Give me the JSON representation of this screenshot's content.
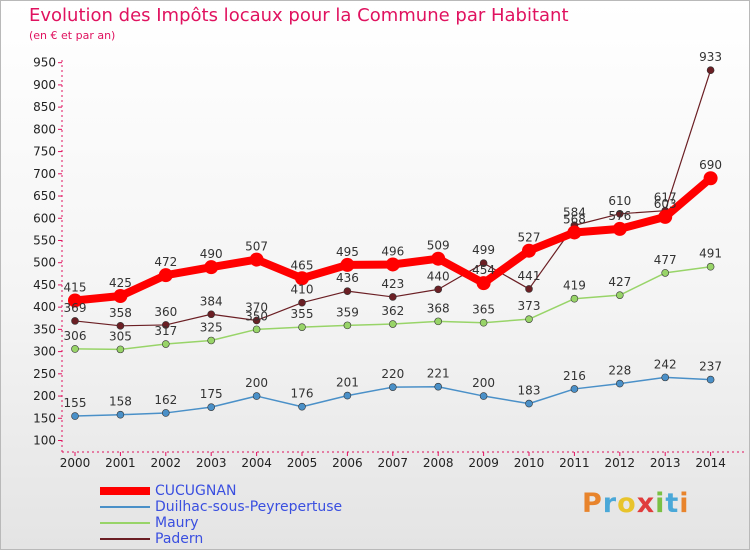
{
  "header": {
    "title": "Evolution des Impôts locaux pour la Commune par Habitant",
    "subtitle": "(en € et par an)"
  },
  "logo": {
    "text": "Proxiti"
  },
  "chart_data": {
    "type": "line",
    "title": "Evolution des Impôts locaux pour la Commune par Habitant",
    "subtitle": "(en € et par an)",
    "xlabel": "",
    "ylabel": "",
    "ylim": [
      100,
      950
    ],
    "yticks": [
      100,
      150,
      200,
      250,
      300,
      350,
      400,
      450,
      500,
      550,
      600,
      650,
      700,
      750,
      800,
      850,
      900,
      950
    ],
    "grid": false,
    "legend_position": "bottom-left",
    "x": [
      "2000",
      "2001",
      "2002",
      "2003",
      "2004",
      "2005",
      "2006",
      "2007",
      "2008",
      "2009",
      "2010",
      "2011",
      "2012",
      "2013",
      "2014"
    ],
    "series": [
      {
        "name": "Padern",
        "color": "#6b1f24",
        "width": 1.2,
        "marker": 3.5,
        "values": [
          369,
          358,
          360,
          384,
          370,
          410,
          436,
          423,
          440,
          499,
          441,
          584,
          610,
          617,
          933
        ],
        "labels": [
          "369",
          "358",
          "360",
          "384",
          "370",
          "410",
          "436",
          "423",
          "440",
          "499",
          "441",
          "584",
          "610",
          "617",
          "933"
        ]
      },
      {
        "name": "Maury",
        "color": "#98d468",
        "width": 1.5,
        "marker": 3.5,
        "values": [
          306,
          305,
          317,
          325,
          350,
          355,
          359,
          362,
          368,
          365,
          373,
          419,
          427,
          477,
          491
        ],
        "labels": [
          "306",
          "305",
          "317",
          "325",
          "350",
          "355",
          "359",
          "362",
          "368",
          "365",
          "373",
          "419",
          "427",
          "477",
          "491"
        ]
      },
      {
        "name": "Duilhac-sous-Peyrepertuse",
        "color": "#4a90c8",
        "width": 1.5,
        "marker": 3.5,
        "values": [
          155,
          158,
          162,
          175,
          200,
          176,
          201,
          220,
          221,
          200,
          183,
          216,
          228,
          242,
          237
        ],
        "labels": [
          "155",
          "158",
          "162",
          "175",
          "200",
          "176",
          "201",
          "220",
          "221",
          "200",
          "183",
          "216",
          "228",
          "242",
          "237"
        ]
      },
      {
        "name": "CUCUGNAN",
        "color": "#ff0000",
        "width": 8,
        "marker": 7,
        "values": [
          415,
          425,
          472,
          490,
          507,
          465,
          495,
          496,
          509,
          454,
          527,
          568,
          576,
          603,
          690
        ],
        "labels": [
          "415",
          "425",
          "472",
          "490",
          "507",
          "465",
          "495",
          "496",
          "509",
          "454",
          "527",
          "568",
          "576",
          "603",
          "690"
        ]
      }
    ],
    "legend": [
      {
        "name": "CUCUGNAN",
        "color": "#ff0000",
        "height": 8
      },
      {
        "name": "Duilhac-sous-Peyrepertuse",
        "color": "#4a90c8",
        "height": 2
      },
      {
        "name": "Maury",
        "color": "#98d468",
        "height": 2
      },
      {
        "name": "Padern",
        "color": "#6b1f24",
        "height": 2
      }
    ]
  }
}
